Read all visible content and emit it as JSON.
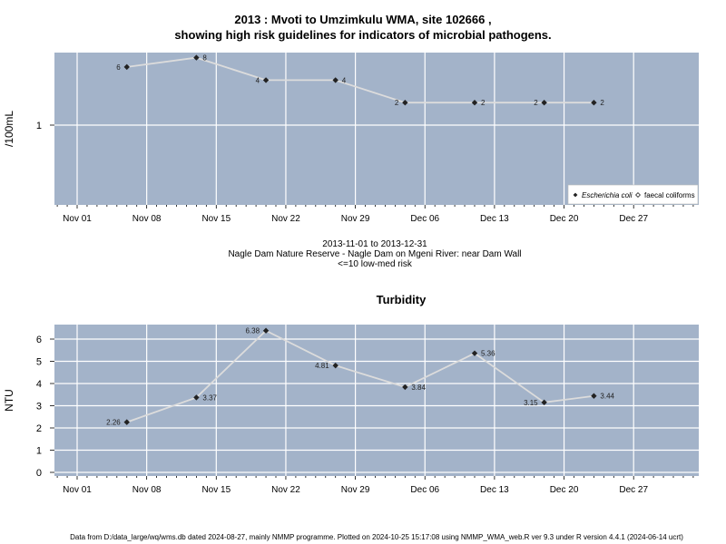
{
  "top_title_line1": "2013 : Mvoti to Umzimkulu WMA, site 102666 ,",
  "top_title_line2": "showing high risk guidelines for indicators of microbial pathogens.",
  "middle_text": {
    "date_range": "2013-11-01 to 2013-12-31",
    "location": "Nagle Dam Nature Reserve - Nagle Dam on Mgeni River: near Dam Wall",
    "risk": "<=10 low-med risk"
  },
  "footer": "Data from D:/data_large/wq/wms.db dated 2024-08-27, mainly NMMP programme. Plotted on 2024-10-25 15:17:08 using NMMP_WMA_web.R ver 9.3 under R version 4.4.1 (2024-06-14 ucrt)",
  "colors": {
    "panel_bg": "#a3b3c9",
    "grid": "#ffffff",
    "line": "#dcdcdc",
    "point": "#222222"
  },
  "chart_data": [
    {
      "type": "line",
      "title": "",
      "ylabel": "/100mL",
      "y_scale": "log",
      "y_ticks": [
        1
      ],
      "y_tick_labels": [
        "1"
      ],
      "x_ticks": [
        "2013-11-01",
        "2013-11-08",
        "2013-11-15",
        "2013-11-22",
        "2013-11-29",
        "2013-12-06",
        "2013-12-13",
        "2013-12-20",
        "2013-12-27"
      ],
      "x_tick_labels": [
        "Nov 01",
        "Nov 08",
        "Nov 15",
        "Nov 22",
        "Nov 29",
        "Dec 06",
        "Dec 13",
        "Dec 20",
        "Dec 27"
      ],
      "legend": {
        "placement": "bottom-right",
        "entries": [
          "Escherichia coli",
          "faecal coliforms"
        ]
      },
      "series": [
        {
          "name": "Escherichia coli",
          "x": [
            "2013-11-06",
            "2013-11-13",
            "2013-11-20",
            "2013-11-27",
            "2013-12-04",
            "2013-12-11",
            "2013-12-18",
            "2013-12-23"
          ],
          "values": [
            6,
            8,
            4,
            4,
            2,
            2,
            2,
            2
          ],
          "labels": [
            "6",
            "8",
            "4",
            "4",
            "2",
            "2",
            "2",
            "2"
          ],
          "label_side": [
            "left",
            "right",
            "left",
            "right",
            "left",
            "right",
            "left",
            "right"
          ]
        }
      ]
    },
    {
      "type": "line",
      "title": "Turbidity",
      "ylabel": "NTU",
      "ylim": [
        0,
        6
      ],
      "y_ticks": [
        0,
        1,
        2,
        3,
        4,
        5,
        6
      ],
      "y_tick_labels": [
        "0",
        "1",
        "2",
        "3",
        "4",
        "5",
        "6"
      ],
      "x_ticks": [
        "2013-11-01",
        "2013-11-08",
        "2013-11-15",
        "2013-11-22",
        "2013-11-29",
        "2013-12-06",
        "2013-12-13",
        "2013-12-20",
        "2013-12-27"
      ],
      "x_tick_labels": [
        "Nov 01",
        "Nov 08",
        "Nov 15",
        "Nov 22",
        "Nov 29",
        "Dec 06",
        "Dec 13",
        "Dec 20",
        "Dec 27"
      ],
      "series": [
        {
          "name": "",
          "x": [
            "2013-11-06",
            "2013-11-13",
            "2013-11-20",
            "2013-11-27",
            "2013-12-04",
            "2013-12-11",
            "2013-12-18",
            "2013-12-23"
          ],
          "values": [
            2.26,
            3.37,
            6.38,
            4.81,
            3.84,
            5.36,
            3.15,
            3.44
          ],
          "labels": [
            "2.26",
            "3.37",
            "6.38",
            "4.81",
            "3.84",
            "5.36",
            "3.15",
            "3.44"
          ],
          "label_side": [
            "left",
            "right",
            "left",
            "left",
            "right",
            "right",
            "left",
            "right"
          ]
        }
      ]
    }
  ]
}
